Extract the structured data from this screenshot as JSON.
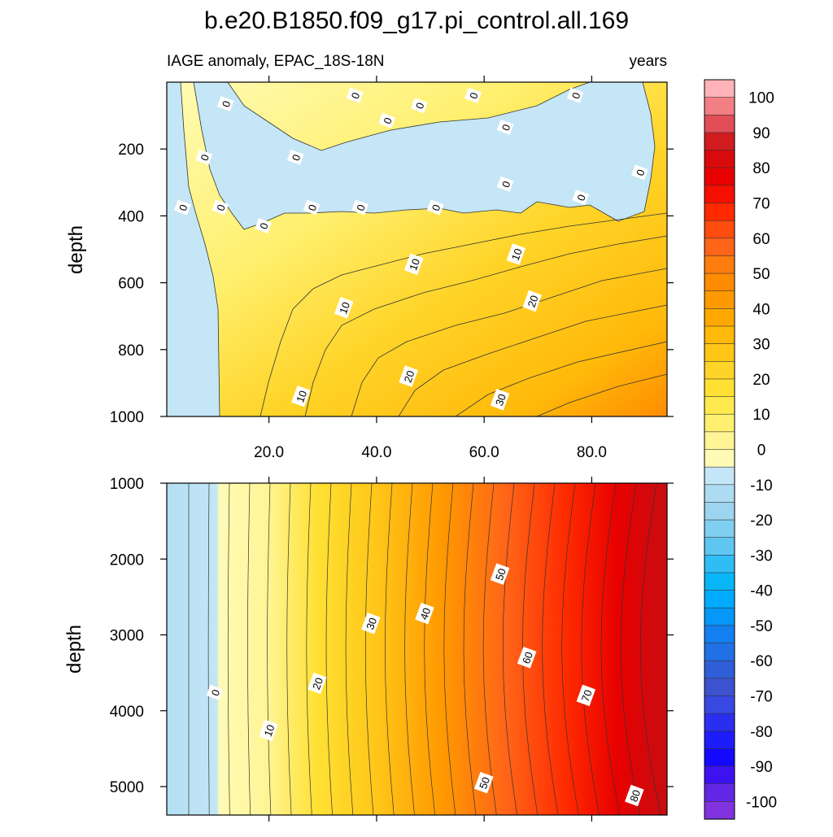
{
  "chart_data": {
    "type": "heatmap",
    "title": "b.e20.B1850.f09_g17.pi_control.all.169",
    "subtitle_left": "IAGE anomaly, EPAC_18S-18N",
    "subtitle_right": "years",
    "xlabel": "",
    "ylabel": "depth",
    "x_ticks": [
      "20.0",
      "40.0",
      "60.0",
      "80.0"
    ],
    "x_range": [
      1,
      94
    ],
    "panels": [
      {
        "name": "upper",
        "depth_range": [
          0,
          1000
        ],
        "y_ticks": [
          "200",
          "400",
          "600",
          "800",
          "1000"
        ],
        "contour_labels": [
          {
            "text": "0",
            "x": 12,
            "depth": 65
          },
          {
            "text": "0",
            "x": 36,
            "depth": 40
          },
          {
            "text": "0",
            "x": 42,
            "depth": 115
          },
          {
            "text": "0",
            "x": 48,
            "depth": 70
          },
          {
            "text": "0",
            "x": 58,
            "depth": 40
          },
          {
            "text": "0",
            "x": 64,
            "depth": 135
          },
          {
            "text": "0",
            "x": 77,
            "depth": 40
          },
          {
            "text": "0",
            "x": 8,
            "depth": 225
          },
          {
            "text": "0",
            "x": 25,
            "depth": 225
          },
          {
            "text": "0",
            "x": 89,
            "depth": 270
          },
          {
            "text": "0",
            "x": 64,
            "depth": 305
          },
          {
            "text": "0",
            "x": 4,
            "depth": 375
          },
          {
            "text": "0",
            "x": 11,
            "depth": 375
          },
          {
            "text": "0",
            "x": 19,
            "depth": 430
          },
          {
            "text": "0",
            "x": 28,
            "depth": 375
          },
          {
            "text": "0",
            "x": 37,
            "depth": 375
          },
          {
            "text": "0",
            "x": 51,
            "depth": 375
          },
          {
            "text": "0",
            "x": 78,
            "depth": 345
          },
          {
            "text": "10",
            "x": 47,
            "depth": 545
          },
          {
            "text": "10",
            "x": 66,
            "depth": 515
          },
          {
            "text": "10",
            "x": 34,
            "depth": 675
          },
          {
            "text": "20",
            "x": 69,
            "depth": 655
          },
          {
            "text": "20",
            "x": 46,
            "depth": 880
          },
          {
            "text": "10",
            "x": 26,
            "depth": 940
          },
          {
            "text": "30",
            "x": 63,
            "depth": 950
          }
        ]
      },
      {
        "name": "lower",
        "depth_range": [
          1000,
          5375
        ],
        "y_ticks": [
          "1000",
          "2000",
          "3000",
          "4000",
          "5000"
        ],
        "contour_labels": [
          {
            "text": "50",
            "x": 63,
            "depth": 2200
          },
          {
            "text": "40",
            "x": 49,
            "depth": 2720
          },
          {
            "text": "30",
            "x": 39,
            "depth": 2850
          },
          {
            "text": "60",
            "x": 68,
            "depth": 3300
          },
          {
            "text": "20",
            "x": 29,
            "depth": 3640
          },
          {
            "text": "70",
            "x": 79,
            "depth": 3800
          },
          {
            "text": "0",
            "x": 10,
            "depth": 3760
          },
          {
            "text": "10",
            "x": 20,
            "depth": 4260
          },
          {
            "text": "50",
            "x": 60,
            "depth": 4950
          },
          {
            "text": "80",
            "x": 88,
            "depth": 5120
          }
        ]
      }
    ],
    "colorbar": {
      "labels": [
        "100",
        "90",
        "80",
        "70",
        "60",
        "50",
        "40",
        "30",
        "20",
        "10",
        "0",
        "-10",
        "-20",
        "-30",
        "-40",
        "-50",
        "-60",
        "-70",
        "-80",
        "-90",
        "-100"
      ],
      "colors": [
        "#ffb3b8",
        "#f27f84",
        "#e24e57",
        "#d11b1f",
        "#d80a0b",
        "#e80000",
        "#f50f00",
        "#ff2a00",
        "#ff4c0f",
        "#ff6418",
        "#ff7c0e",
        "#ff8c00",
        "#ff9900",
        "#ffa900",
        "#ffb90a",
        "#ffc618",
        "#ffd428",
        "#ffe133",
        "#ffea4e",
        "#fff06f",
        "#fff596",
        "#fffbb6",
        "#c4e6f6",
        "#addcf2",
        "#9dd5f0",
        "#80cff0",
        "#5fc6f2",
        "#2fbdf5",
        "#08b6f8",
        "#00abff",
        "#0598f8",
        "#137ff0",
        "#2270e6",
        "#305ed8",
        "#3c52cf",
        "#3848e2",
        "#2a2eef",
        "#1d1dfb",
        "#1508ff",
        "#3c12f0",
        "#6226e5",
        "#8033df"
      ]
    },
    "grid": false,
    "legend": "right colorbar"
  }
}
